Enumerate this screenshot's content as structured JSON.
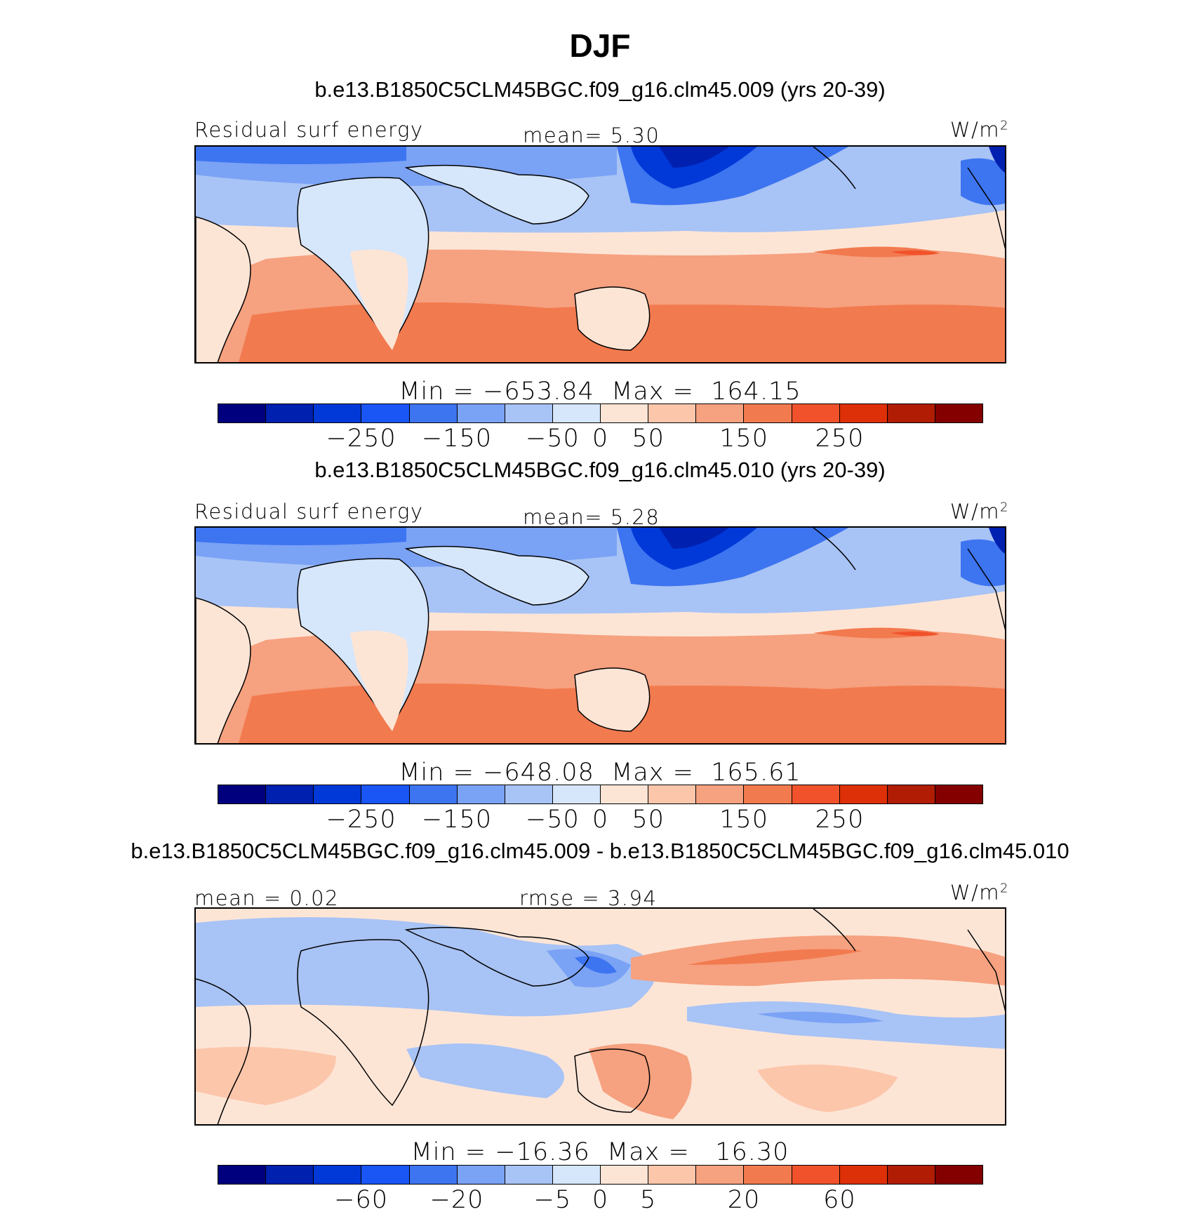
{
  "title": "DJF",
  "palette": [
    "#00007f",
    "#0020b0",
    "#0039d8",
    "#1a55f5",
    "#3d74f0",
    "#7aa2f5",
    "#a8c3f5",
    "#d6e6fb",
    "#fde5d6",
    "#fcc6ab",
    "#f6a17f",
    "#f27a4f",
    "#f1522b",
    "#de3008",
    "#b11c05",
    "#840000"
  ],
  "panels": [
    {
      "title": "b.e13.B1850C5CLM45BGC.f09_g16.clm45.009 (yrs 20-39)",
      "left_label": "Residual surf energy",
      "center_label": "mean=   5.30",
      "unit": "W/m",
      "unit_sup": "2",
      "stats": "Min = −653.84  Max =  164.15",
      "ticks": [
        "−250",
        "−150",
        "−50",
        "0",
        "50",
        "150",
        "250"
      ]
    },
    {
      "title": "b.e13.B1850C5CLM45BGC.f09_g16.clm45.010 (yrs 20-39)",
      "left_label": "Residual surf energy",
      "center_label": "mean=   5.28",
      "unit": "W/m",
      "unit_sup": "2",
      "stats": "Min = −648.08  Max =  165.61",
      "ticks": [
        "−250",
        "−150",
        "−50",
        "0",
        "50",
        "150",
        "250"
      ]
    },
    {
      "title": "b.e13.B1850C5CLM45BGC.f09_g16.clm45.009 - b.e13.B1850C5CLM45BGC.f09_g16.clm45.010",
      "left_label": "mean =   0.02",
      "center_label": "rmse =   3.94",
      "unit": "W/m",
      "unit_sup": "2",
      "stats": "Min = −16.36  Max =   16.30",
      "ticks": [
        "−60",
        "−20",
        "−5",
        "0",
        "5",
        "20",
        "60"
      ]
    }
  ]
}
